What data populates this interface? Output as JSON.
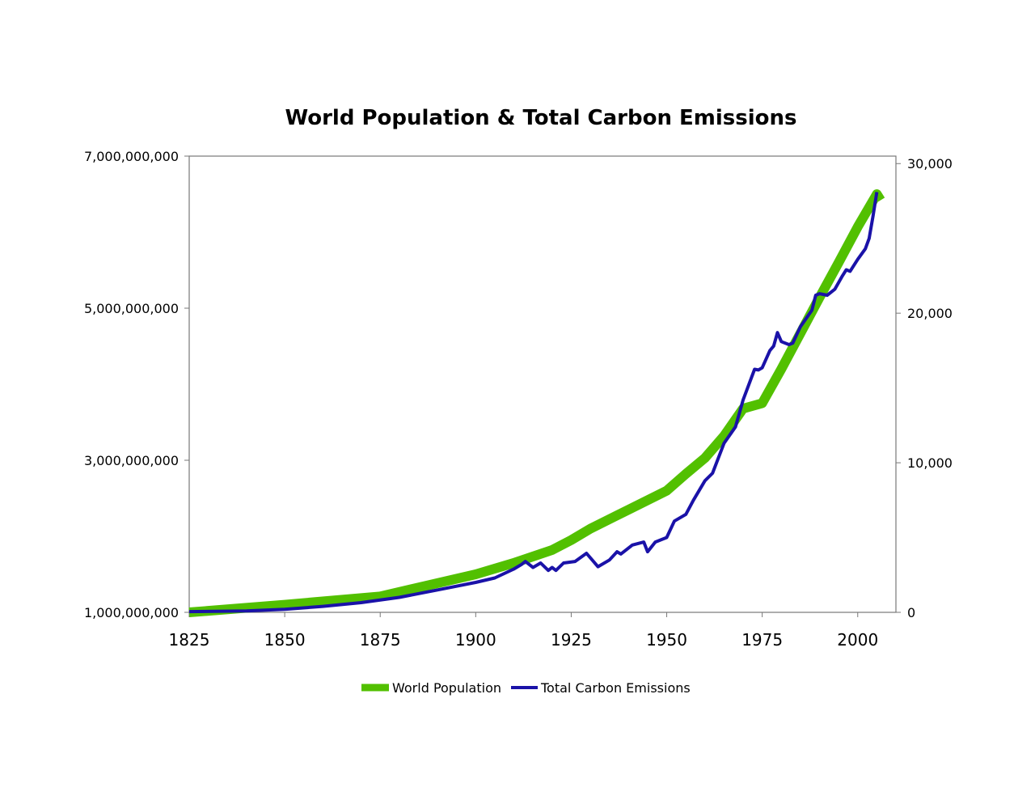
{
  "chart_data": {
    "type": "line",
    "title": "World Population & Total Carbon Emissions",
    "xlabel": "",
    "ylabel": "",
    "y2label": "",
    "xlim": [
      1825,
      2010
    ],
    "ylim": [
      1000000000,
      7000000000
    ],
    "y2lim": [
      0,
      30500
    ],
    "grid": false,
    "legend": "bottom",
    "x_ticks": [
      "1825",
      "1850",
      "1875",
      "1900",
      "1925",
      "1950",
      "1975",
      "2000"
    ],
    "y_ticks": [
      "1,000,000,000",
      "3,000,000,000",
      "5,000,000,000",
      "7,000,000,000"
    ],
    "y2_ticks": [
      "0",
      "10,000",
      "20,000",
      "30,000"
    ],
    "series": [
      {
        "name": "World Population",
        "axis": "left",
        "color": "#52c000",
        "x": [
          1825,
          1840,
          1850,
          1875,
          1900,
          1910,
          1920,
          1925,
          1930,
          1940,
          1950,
          1955,
          1960,
          1965,
          1970,
          1975,
          1980,
          1985,
          1990,
          1995,
          2000,
          2005,
          2006
        ],
        "y": [
          1000000000,
          1060000000,
          1100000000,
          1210000000,
          1500000000,
          1650000000,
          1820000000,
          1950000000,
          2100000000,
          2350000000,
          2600000000,
          2820000000,
          3030000000,
          3320000000,
          3680000000,
          3750000000,
          4200000000,
          4670000000,
          5140000000,
          5600000000,
          6070000000,
          6500000000,
          6420000000
        ]
      },
      {
        "name": "Total Carbon Emissions",
        "axis": "right",
        "color": "#1a12a8",
        "x": [
          1825,
          1840,
          1850,
          1860,
          1870,
          1880,
          1890,
          1900,
          1905,
          1910,
          1912,
          1913,
          1915,
          1917,
          1919,
          1920,
          1921,
          1923,
          1926,
          1929,
          1932,
          1935,
          1937,
          1938,
          1941,
          1944,
          1945,
          1947,
          1949,
          1950,
          1952,
          1955,
          1957,
          1960,
          1962,
          1965,
          1968,
          1970,
          1973,
          1974,
          1975,
          1977,
          1978,
          1979,
          1980,
          1982,
          1983,
          1985,
          1988,
          1989,
          1990,
          1992,
          1994,
          1996,
          1997,
          1998,
          2000,
          2002,
          2003,
          2004,
          2005
        ],
        "y": [
          50,
          100,
          200,
          400,
          650,
          1000,
          1500,
          2000,
          2300,
          2900,
          3200,
          3400,
          3000,
          3300,
          2800,
          3000,
          2800,
          3300,
          3400,
          3950,
          3050,
          3500,
          4050,
          3900,
          4500,
          4700,
          4050,
          4700,
          4900,
          5000,
          6100,
          6550,
          7500,
          8800,
          9300,
          11300,
          12400,
          14200,
          16250,
          16200,
          16350,
          17500,
          17800,
          18700,
          18100,
          17900,
          18000,
          19100,
          20200,
          21200,
          21300,
          21200,
          21600,
          22500,
          22900,
          22800,
          23600,
          24300,
          25000,
          26500,
          28100
        ]
      }
    ]
  }
}
